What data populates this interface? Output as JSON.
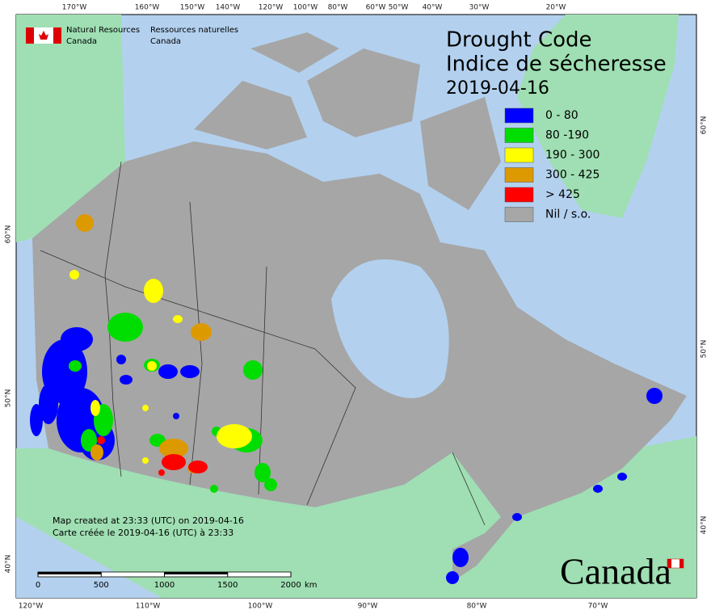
{
  "header": {
    "agency_en": [
      "Natural Resources",
      "Canada"
    ],
    "agency_fr": [
      "Ressources naturelles",
      "Canada"
    ]
  },
  "title": [
    "Drought Code",
    "Indice de sécheresse"
  ],
  "date": "2019-04-16",
  "legend": [
    {
      "label": "0 - 80",
      "color": "#0000ff"
    },
    {
      "label": "80 -190",
      "color": "#00dd00"
    },
    {
      "label": "190 - 300",
      "color": "#ffff00"
    },
    {
      "label": "300 - 425",
      "color": "#dd9900"
    },
    {
      "label": "> 425",
      "color": "#ff0000"
    },
    {
      "label": "Nil / s.o.",
      "color": "#a6a6a6"
    }
  ],
  "footer": [
    "Map created at 23:33 (UTC) on 2019-04-16",
    "Carte créée le 2019-04-16 (UTC) à 23:33"
  ],
  "scale": {
    "ticks": [
      0,
      500,
      1000,
      1500,
      2000
    ],
    "unit": "km"
  },
  "graticule": {
    "top": [
      "170°W",
      "160°W",
      "150°W",
      "140°W",
      "120°W",
      "100°W",
      "80°W",
      "60°W",
      "50°W",
      "40°W",
      "30°W",
      "20°W"
    ],
    "bottom": [
      "120°W",
      "110°W",
      "100°W",
      "90°W",
      "80°W",
      "70°W"
    ],
    "left": [
      "60°N",
      "50°N",
      "40°N"
    ],
    "right": [
      "60°N",
      "50°N",
      "40°N"
    ]
  },
  "wordmark": "Canada"
}
